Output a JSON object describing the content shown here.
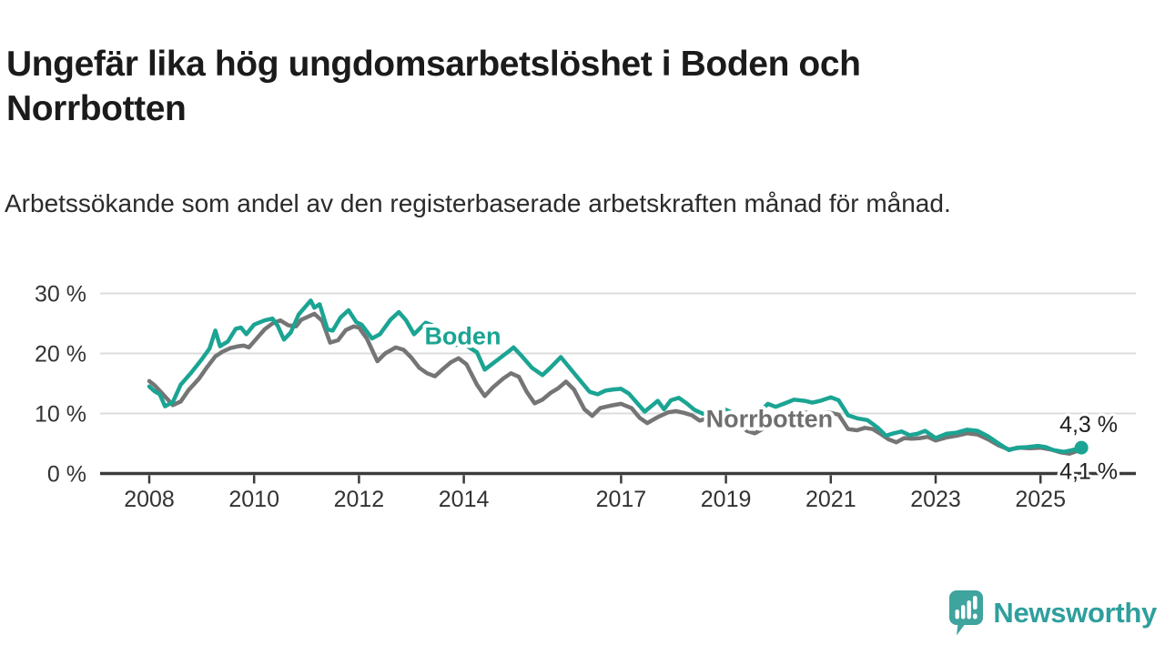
{
  "header": {
    "title": "Ungefär lika hög ungdomsarbetslöshet i Boden och Norrbotten",
    "subtitle": "Arbetssökande som andel av den registerbaserade arbetskraften månad för månad."
  },
  "branding": {
    "logo_text": "Newsworthy",
    "logo_icon": "bar-chart-speech-bubble-icon",
    "logo_color": "#2f9f9d"
  },
  "chart_data": {
    "type": "line",
    "title": "Ungefär lika hög ungdomsarbetslöshet i Boden och Norrbotten",
    "subtitle": "Arbetssökande som andel av den registerbaserade arbetskraften månad för månad.",
    "unit": "%",
    "grid": true,
    "legend_position": "inline-labels",
    "xlim": [
      2007.85,
      2026.3
    ],
    "ylim": [
      0,
      31
    ],
    "x_ticks": [
      {
        "year": 2008,
        "label": "2008"
      },
      {
        "year": 2010,
        "label": "2010"
      },
      {
        "year": 2012,
        "label": "2012"
      },
      {
        "year": 2014,
        "label": "2014"
      },
      {
        "year": 2017,
        "label": "2017"
      },
      {
        "year": 2019,
        "label": "2019"
      },
      {
        "year": 2021,
        "label": "2021"
      },
      {
        "year": 2023,
        "label": "2023"
      },
      {
        "year": 2025,
        "label": "2025"
      }
    ],
    "y_ticks": [
      {
        "value": 0,
        "label": "0 %"
      },
      {
        "value": 10,
        "label": "10 %"
      },
      {
        "value": 20,
        "label": "20 %"
      },
      {
        "value": 30,
        "label": "30 %"
      }
    ],
    "colors": {
      "boden": "#1ba493",
      "norrbotten": "#757575",
      "norrbotten_label": "#6f6f6f",
      "axis": "#3b3b3b",
      "grid": "#dcdcdc",
      "value_label": "#1f1f1f"
    },
    "series": [
      {
        "name": "Norrbotten",
        "color": "#757575",
        "label_color": "#6f6f6f",
        "end_label": "4,1 %",
        "end_value": 4.1,
        "end_dot": false,
        "points": [
          [
            2008.0,
            15.4
          ],
          [
            2008.1,
            14.7
          ],
          [
            2008.25,
            13.3
          ],
          [
            2008.45,
            11.4
          ],
          [
            2008.6,
            12.0
          ],
          [
            2008.75,
            13.9
          ],
          [
            2008.95,
            15.8
          ],
          [
            2009.1,
            17.7
          ],
          [
            2009.26,
            19.5
          ],
          [
            2009.4,
            20.3
          ],
          [
            2009.55,
            20.9
          ],
          [
            2009.7,
            21.2
          ],
          [
            2009.8,
            21.3
          ],
          [
            2009.9,
            21.0
          ],
          [
            2010.0,
            22.0
          ],
          [
            2010.2,
            24.0
          ],
          [
            2010.35,
            25.0
          ],
          [
            2010.5,
            25.5
          ],
          [
            2010.65,
            24.7
          ],
          [
            2010.8,
            24.5
          ],
          [
            2010.9,
            25.6
          ],
          [
            2011.05,
            26.2
          ],
          [
            2011.15,
            26.6
          ],
          [
            2011.3,
            25.4
          ],
          [
            2011.45,
            21.8
          ],
          [
            2011.6,
            22.2
          ],
          [
            2011.75,
            23.9
          ],
          [
            2011.9,
            24.5
          ],
          [
            2012.0,
            24.3
          ],
          [
            2012.15,
            22.5
          ],
          [
            2012.35,
            18.7
          ],
          [
            2012.5,
            20.0
          ],
          [
            2012.7,
            21.0
          ],
          [
            2012.85,
            20.6
          ],
          [
            2013.0,
            19.3
          ],
          [
            2013.15,
            17.6
          ],
          [
            2013.3,
            16.7
          ],
          [
            2013.45,
            16.2
          ],
          [
            2013.6,
            17.4
          ],
          [
            2013.75,
            18.5
          ],
          [
            2013.9,
            19.2
          ],
          [
            2014.05,
            18.2
          ],
          [
            2014.25,
            14.8
          ],
          [
            2014.4,
            12.9
          ],
          [
            2014.55,
            14.3
          ],
          [
            2014.75,
            15.8
          ],
          [
            2014.9,
            16.7
          ],
          [
            2015.05,
            16.1
          ],
          [
            2015.2,
            13.6
          ],
          [
            2015.35,
            11.7
          ],
          [
            2015.5,
            12.3
          ],
          [
            2015.65,
            13.4
          ],
          [
            2015.8,
            14.2
          ],
          [
            2015.95,
            15.3
          ],
          [
            2016.1,
            14.0
          ],
          [
            2016.3,
            10.7
          ],
          [
            2016.45,
            9.6
          ],
          [
            2016.6,
            10.9
          ],
          [
            2016.8,
            11.3
          ],
          [
            2017.0,
            11.6
          ],
          [
            2017.2,
            10.9
          ],
          [
            2017.35,
            9.3
          ],
          [
            2017.5,
            8.4
          ],
          [
            2017.7,
            9.4
          ],
          [
            2017.9,
            10.2
          ],
          [
            2018.05,
            10.4
          ],
          [
            2018.2,
            10.1
          ],
          [
            2018.35,
            9.7
          ],
          [
            2018.5,
            8.8
          ],
          [
            2018.65,
            9.2
          ],
          [
            2018.8,
            9.3
          ],
          [
            2018.95,
            9.4
          ],
          [
            2019.1,
            9.0
          ],
          [
            2019.25,
            8.3
          ],
          [
            2019.4,
            7.1
          ],
          [
            2019.55,
            6.7
          ],
          [
            2019.7,
            7.4
          ],
          [
            2019.85,
            8.2
          ],
          [
            2020.0,
            8.9
          ],
          [
            2020.15,
            9.5
          ],
          [
            2020.35,
            10.4
          ],
          [
            2020.55,
            10.1
          ],
          [
            2020.75,
            9.9
          ],
          [
            2020.95,
            10.2
          ],
          [
            2021.15,
            9.8
          ],
          [
            2021.33,
            7.4
          ],
          [
            2021.5,
            7.2
          ],
          [
            2021.65,
            7.6
          ],
          [
            2021.8,
            7.4
          ],
          [
            2021.95,
            6.6
          ],
          [
            2022.1,
            5.7
          ],
          [
            2022.25,
            5.2
          ],
          [
            2022.4,
            5.9
          ],
          [
            2022.55,
            5.8
          ],
          [
            2022.7,
            5.9
          ],
          [
            2022.85,
            6.1
          ],
          [
            2023.0,
            5.5
          ],
          [
            2023.2,
            6.0
          ],
          [
            2023.4,
            6.3
          ],
          [
            2023.6,
            6.7
          ],
          [
            2023.8,
            6.5
          ],
          [
            2024.0,
            5.7
          ],
          [
            2024.2,
            4.7
          ],
          [
            2024.4,
            4.0
          ],
          [
            2024.6,
            4.3
          ],
          [
            2024.8,
            4.2
          ],
          [
            2025.0,
            4.3
          ],
          [
            2025.2,
            4.0
          ],
          [
            2025.4,
            3.5
          ],
          [
            2025.55,
            3.3
          ],
          [
            2025.68,
            3.7
          ],
          [
            2025.78,
            4.1
          ]
        ]
      },
      {
        "name": "Boden",
        "color": "#1ba493",
        "label_color": "#1ba493",
        "end_label": "4,3 %",
        "end_value": 4.3,
        "end_dot": true,
        "points": [
          [
            2008.0,
            14.5
          ],
          [
            2008.1,
            13.7
          ],
          [
            2008.2,
            13.2
          ],
          [
            2008.3,
            11.2
          ],
          [
            2008.45,
            11.9
          ],
          [
            2008.6,
            14.8
          ],
          [
            2008.8,
            16.8
          ],
          [
            2009.0,
            19.0
          ],
          [
            2009.15,
            20.8
          ],
          [
            2009.26,
            23.8
          ],
          [
            2009.35,
            21.2
          ],
          [
            2009.5,
            22.0
          ],
          [
            2009.65,
            24.1
          ],
          [
            2009.75,
            24.3
          ],
          [
            2009.85,
            23.2
          ],
          [
            2010.0,
            24.8
          ],
          [
            2010.2,
            25.5
          ],
          [
            2010.35,
            25.8
          ],
          [
            2010.45,
            24.6
          ],
          [
            2010.57,
            22.3
          ],
          [
            2010.7,
            23.5
          ],
          [
            2010.85,
            26.5
          ],
          [
            2011.0,
            28.0
          ],
          [
            2011.08,
            28.8
          ],
          [
            2011.15,
            27.6
          ],
          [
            2011.25,
            28.2
          ],
          [
            2011.4,
            24.0
          ],
          [
            2011.5,
            23.8
          ],
          [
            2011.65,
            26.0
          ],
          [
            2011.8,
            27.2
          ],
          [
            2011.95,
            25.2
          ],
          [
            2012.05,
            24.8
          ],
          [
            2012.25,
            22.5
          ],
          [
            2012.4,
            23.2
          ],
          [
            2012.6,
            25.6
          ],
          [
            2012.76,
            26.9
          ],
          [
            2012.9,
            25.5
          ],
          [
            2013.05,
            23.2
          ],
          [
            2013.27,
            25.1
          ],
          [
            2013.4,
            24.7
          ],
          [
            2013.55,
            23.6
          ],
          [
            2013.7,
            22.2
          ],
          [
            2013.85,
            21.4
          ],
          [
            2013.98,
            21.8
          ],
          [
            2014.1,
            21.0
          ],
          [
            2014.25,
            20.2
          ],
          [
            2014.4,
            17.3
          ],
          [
            2014.55,
            18.3
          ],
          [
            2014.7,
            19.3
          ],
          [
            2014.85,
            20.3
          ],
          [
            2014.95,
            21.0
          ],
          [
            2015.1,
            19.6
          ],
          [
            2015.3,
            17.6
          ],
          [
            2015.5,
            16.4
          ],
          [
            2015.65,
            17.6
          ],
          [
            2015.85,
            19.4
          ],
          [
            2016.0,
            17.8
          ],
          [
            2016.2,
            15.7
          ],
          [
            2016.4,
            13.6
          ],
          [
            2016.55,
            13.2
          ],
          [
            2016.7,
            13.8
          ],
          [
            2016.85,
            14.0
          ],
          [
            2017.0,
            14.1
          ],
          [
            2017.15,
            13.3
          ],
          [
            2017.3,
            11.8
          ],
          [
            2017.45,
            10.3
          ],
          [
            2017.6,
            11.4
          ],
          [
            2017.7,
            12.1
          ],
          [
            2017.82,
            10.7
          ],
          [
            2017.95,
            12.2
          ],
          [
            2018.1,
            12.6
          ],
          [
            2018.25,
            11.7
          ],
          [
            2018.4,
            10.6
          ],
          [
            2018.55,
            10.0
          ],
          [
            2018.7,
            9.7
          ],
          [
            2018.85,
            10.2
          ],
          [
            2019.0,
            10.6
          ],
          [
            2019.15,
            10.0
          ],
          [
            2019.3,
            9.2
          ],
          [
            2019.45,
            8.9
          ],
          [
            2019.6,
            9.9
          ],
          [
            2019.8,
            11.6
          ],
          [
            2019.95,
            11.1
          ],
          [
            2020.1,
            11.6
          ],
          [
            2020.3,
            12.3
          ],
          [
            2020.5,
            12.1
          ],
          [
            2020.65,
            11.8
          ],
          [
            2020.8,
            12.1
          ],
          [
            2021.0,
            12.7
          ],
          [
            2021.15,
            12.2
          ],
          [
            2021.33,
            9.7
          ],
          [
            2021.5,
            9.2
          ],
          [
            2021.7,
            8.9
          ],
          [
            2021.9,
            7.6
          ],
          [
            2022.05,
            6.3
          ],
          [
            2022.2,
            6.7
          ],
          [
            2022.35,
            7.0
          ],
          [
            2022.5,
            6.4
          ],
          [
            2022.65,
            6.6
          ],
          [
            2022.8,
            7.1
          ],
          [
            2023.0,
            5.9
          ],
          [
            2023.2,
            6.6
          ],
          [
            2023.4,
            6.8
          ],
          [
            2023.6,
            7.3
          ],
          [
            2023.8,
            7.1
          ],
          [
            2024.0,
            6.2
          ],
          [
            2024.2,
            5.0
          ],
          [
            2024.4,
            3.9
          ],
          [
            2024.55,
            4.3
          ],
          [
            2024.75,
            4.4
          ],
          [
            2024.95,
            4.6
          ],
          [
            2025.1,
            4.4
          ],
          [
            2025.25,
            3.9
          ],
          [
            2025.45,
            3.6
          ],
          [
            2025.6,
            3.9
          ],
          [
            2025.78,
            4.3
          ]
        ]
      }
    ],
    "inline_labels": [
      {
        "series": "Boden",
        "text": "Boden",
        "year": 2013.98,
        "value": 22.9
      },
      {
        "series": "Norrbotten",
        "text": "Norrbotten",
        "year": 2019.83,
        "value": 9.1
      }
    ],
    "end_labels": [
      {
        "series": "Boden",
        "text": "4,3 %"
      },
      {
        "series": "Norrbotten",
        "text": "4,1 %"
      }
    ]
  }
}
